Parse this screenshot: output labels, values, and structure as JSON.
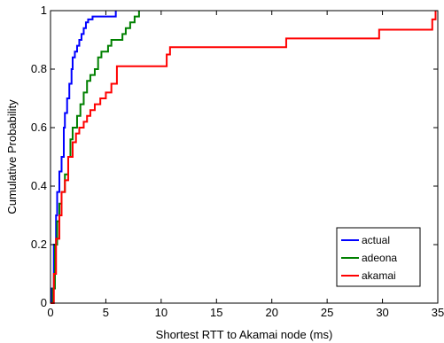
{
  "chart_data": {
    "type": "line",
    "step": true,
    "xlabel": "Shortest RTT to Akamai node (ms)",
    "ylabel": "Cumulative Probability",
    "xlim": [
      0,
      35
    ],
    "ylim": [
      0,
      1
    ],
    "xticks": [
      "0",
      "5",
      "10",
      "15",
      "20",
      "25",
      "30",
      "35"
    ],
    "yticks": [
      "0",
      "0.2",
      "0.4",
      "0.6",
      "0.8",
      "1"
    ],
    "grid": false,
    "legend_position": "bottom-right",
    "series": [
      {
        "name": "actual",
        "color": "#0000ff",
        "x": [
          0,
          0.1,
          0.3,
          0.5,
          0.6,
          0.8,
          1.0,
          1.2,
          1.3,
          1.5,
          1.7,
          1.9,
          2.0,
          2.2,
          2.4,
          2.6,
          2.8,
          3.0,
          3.2,
          3.4,
          3.8,
          4.0,
          4.5,
          5.0,
          5.9
        ],
        "y": [
          0,
          0.05,
          0.2,
          0.3,
          0.38,
          0.45,
          0.5,
          0.6,
          0.65,
          0.7,
          0.75,
          0.8,
          0.84,
          0.86,
          0.88,
          0.9,
          0.92,
          0.94,
          0.96,
          0.97,
          0.98,
          0.98,
          0.98,
          0.98,
          1.0
        ]
      },
      {
        "name": "adeona",
        "color": "#008000",
        "x": [
          0,
          0.2,
          0.4,
          0.6,
          0.8,
          1.0,
          1.3,
          1.6,
          1.8,
          2.0,
          2.4,
          2.7,
          3.0,
          3.3,
          3.6,
          4.0,
          4.3,
          4.6,
          5.0,
          5.2,
          5.5,
          6.0,
          6.5,
          6.8,
          7.2,
          7.6,
          8.0
        ],
        "y": [
          0,
          0.05,
          0.2,
          0.28,
          0.34,
          0.38,
          0.44,
          0.5,
          0.56,
          0.6,
          0.64,
          0.68,
          0.72,
          0.76,
          0.78,
          0.8,
          0.84,
          0.86,
          0.86,
          0.88,
          0.9,
          0.9,
          0.92,
          0.94,
          0.96,
          0.98,
          1.0
        ]
      },
      {
        "name": "akamai",
        "color": "#ff0000",
        "x": [
          0,
          0.3,
          0.5,
          0.8,
          1.0,
          1.3,
          1.6,
          2.0,
          2.3,
          2.6,
          3.0,
          3.3,
          3.6,
          4.0,
          4.5,
          5.0,
          5.5,
          6.0,
          10.5,
          10.8,
          21.3,
          29.7,
          34.5,
          34.8
        ],
        "y": [
          0,
          0.1,
          0.22,
          0.3,
          0.38,
          0.42,
          0.5,
          0.55,
          0.58,
          0.6,
          0.62,
          0.64,
          0.66,
          0.68,
          0.7,
          0.72,
          0.75,
          0.81,
          0.85,
          0.875,
          0.905,
          0.935,
          0.97,
          1.0
        ]
      }
    ]
  }
}
